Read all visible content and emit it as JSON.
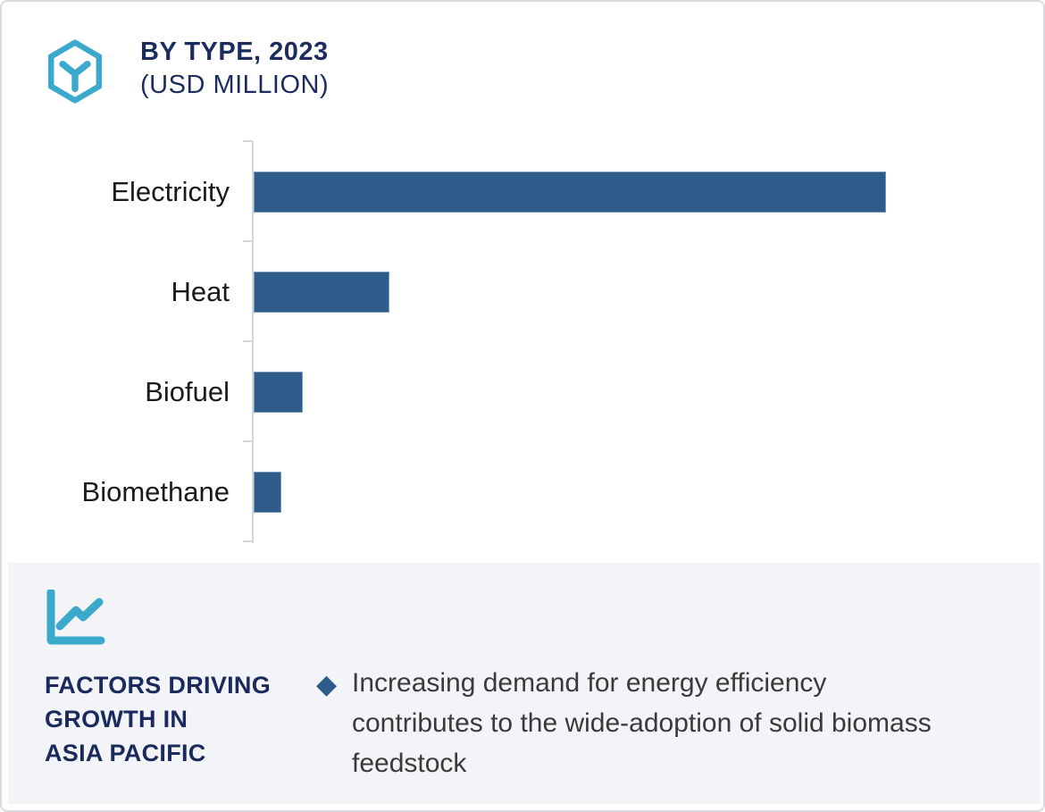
{
  "header": {
    "icon": "hexagon-box-icon",
    "title": "BY TYPE, 2023",
    "subtitle": "(USD MILLION)"
  },
  "chart_data": {
    "type": "bar",
    "orientation": "horizontal",
    "title": "BY TYPE, 2023",
    "subtitle_units": "USD MILLION",
    "categories": [
      "Electricity",
      "Heat",
      "Biofuel",
      "Biomethane"
    ],
    "values_pct_of_max_estimated": [
      100,
      21.5,
      7.8,
      4.4
    ],
    "value_labels_shown": false,
    "axis_tick_labels_shown": false,
    "grid": "off",
    "legend": "none",
    "bar_color": "#2d5c8a",
    "axis_color": "#d6d6d6"
  },
  "insight": {
    "icon": "line-chart-icon",
    "heading_lines": [
      "FACTORS DRIVING",
      "GROWTH IN",
      "ASIA PACIFIC"
    ],
    "bullet_glyph": "◆",
    "bullets": [
      "Increasing demand for energy efficiency contributes to the wide-adoption of solid biomass feedstock"
    ]
  },
  "colors": {
    "bar_blue": "#2d5c8a",
    "accent_cyan": "#3aa9cb",
    "navy": "#1c2c5e",
    "panel_bg": "#f2f4f8",
    "card_border": "#d9dbe0"
  }
}
